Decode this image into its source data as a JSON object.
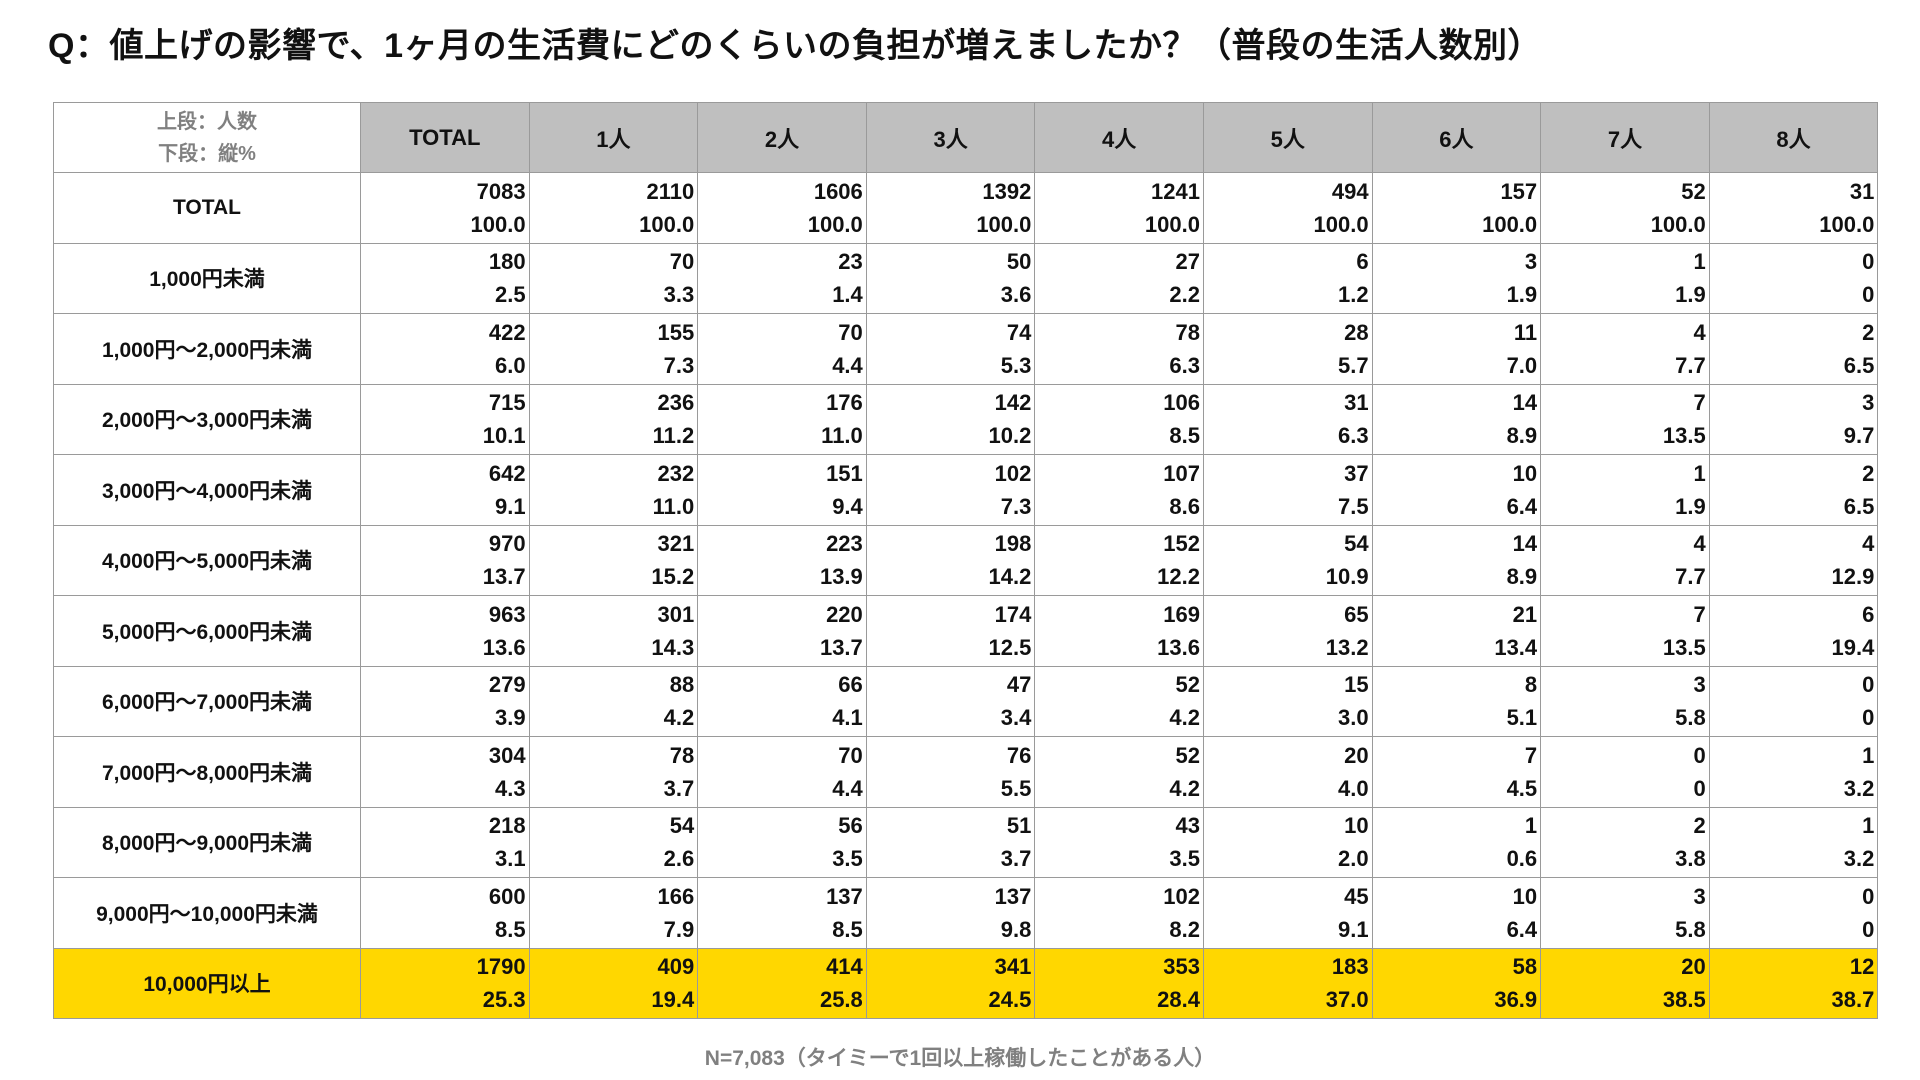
{
  "title": "Q：値上げの影響で、1ヶ月の生活費にどのくらいの負担が増えましたか？（普段の生活人数別）",
  "corner": {
    "line1": "上段：人数",
    "line2": "下段：縦%"
  },
  "footnote": "N=7,083（タイミーで1回以上稼働したことがある人）",
  "colors": {
    "header_bg": "#bfbfbf",
    "highlight": "#ffd700",
    "border": "#9a9a9a",
    "muted_text": "#808080"
  },
  "chart_data": {
    "type": "table",
    "columns": [
      "TOTAL",
      "1人",
      "2人",
      "3人",
      "4人",
      "5人",
      "6人",
      "7人",
      "8人"
    ],
    "rows": [
      {
        "label": "TOTAL",
        "counts": [
          "7083",
          "2110",
          "1606",
          "1392",
          "1241",
          "494",
          "157",
          "52",
          "31"
        ],
        "percents": [
          "100.0",
          "100.0",
          "100.0",
          "100.0",
          "100.0",
          "100.0",
          "100.0",
          "100.0",
          "100.0"
        ],
        "highlight": false
      },
      {
        "label": "1,000円未満",
        "counts": [
          "180",
          "70",
          "23",
          "50",
          "27",
          "6",
          "3",
          "1",
          "0"
        ],
        "percents": [
          "2.5",
          "3.3",
          "1.4",
          "3.6",
          "2.2",
          "1.2",
          "1.9",
          "1.9",
          "0"
        ],
        "highlight": false
      },
      {
        "label": "1,000円～2,000円未満",
        "counts": [
          "422",
          "155",
          "70",
          "74",
          "78",
          "28",
          "11",
          "4",
          "2"
        ],
        "percents": [
          "6.0",
          "7.3",
          "4.4",
          "5.3",
          "6.3",
          "5.7",
          "7.0",
          "7.7",
          "6.5"
        ],
        "highlight": false
      },
      {
        "label": "2,000円～3,000円未満",
        "counts": [
          "715",
          "236",
          "176",
          "142",
          "106",
          "31",
          "14",
          "7",
          "3"
        ],
        "percents": [
          "10.1",
          "11.2",
          "11.0",
          "10.2",
          "8.5",
          "6.3",
          "8.9",
          "13.5",
          "9.7"
        ],
        "highlight": false
      },
      {
        "label": "3,000円～4,000円未満",
        "counts": [
          "642",
          "232",
          "151",
          "102",
          "107",
          "37",
          "10",
          "1",
          "2"
        ],
        "percents": [
          "9.1",
          "11.0",
          "9.4",
          "7.3",
          "8.6",
          "7.5",
          "6.4",
          "1.9",
          "6.5"
        ],
        "highlight": false
      },
      {
        "label": "4,000円～5,000円未満",
        "counts": [
          "970",
          "321",
          "223",
          "198",
          "152",
          "54",
          "14",
          "4",
          "4"
        ],
        "percents": [
          "13.7",
          "15.2",
          "13.9",
          "14.2",
          "12.2",
          "10.9",
          "8.9",
          "7.7",
          "12.9"
        ],
        "highlight": false
      },
      {
        "label": "5,000円～6,000円未満",
        "counts": [
          "963",
          "301",
          "220",
          "174",
          "169",
          "65",
          "21",
          "7",
          "6"
        ],
        "percents": [
          "13.6",
          "14.3",
          "13.7",
          "12.5",
          "13.6",
          "13.2",
          "13.4",
          "13.5",
          "19.4"
        ],
        "highlight": false
      },
      {
        "label": "6,000円～7,000円未満",
        "counts": [
          "279",
          "88",
          "66",
          "47",
          "52",
          "15",
          "8",
          "3",
          "0"
        ],
        "percents": [
          "3.9",
          "4.2",
          "4.1",
          "3.4",
          "4.2",
          "3.0",
          "5.1",
          "5.8",
          "0"
        ],
        "highlight": false
      },
      {
        "label": "7,000円～8,000円未満",
        "counts": [
          "304",
          "78",
          "70",
          "76",
          "52",
          "20",
          "7",
          "0",
          "1"
        ],
        "percents": [
          "4.3",
          "3.7",
          "4.4",
          "5.5",
          "4.2",
          "4.0",
          "4.5",
          "0",
          "3.2"
        ],
        "highlight": false
      },
      {
        "label": "8,000円～9,000円未満",
        "counts": [
          "218",
          "54",
          "56",
          "51",
          "43",
          "10",
          "1",
          "2",
          "1"
        ],
        "percents": [
          "3.1",
          "2.6",
          "3.5",
          "3.7",
          "3.5",
          "2.0",
          "0.6",
          "3.8",
          "3.2"
        ],
        "highlight": false
      },
      {
        "label": "9,000円～10,000円未満",
        "counts": [
          "600",
          "166",
          "137",
          "137",
          "102",
          "45",
          "10",
          "3",
          "0"
        ],
        "percents": [
          "8.5",
          "7.9",
          "8.5",
          "9.8",
          "8.2",
          "9.1",
          "6.4",
          "5.8",
          "0"
        ],
        "highlight": false
      },
      {
        "label": "10,000円以上",
        "counts": [
          "1790",
          "409",
          "414",
          "341",
          "353",
          "183",
          "58",
          "20",
          "12"
        ],
        "percents": [
          "25.3",
          "19.4",
          "25.8",
          "24.5",
          "28.4",
          "37.0",
          "36.9",
          "38.5",
          "38.7"
        ],
        "highlight": true
      }
    ]
  }
}
